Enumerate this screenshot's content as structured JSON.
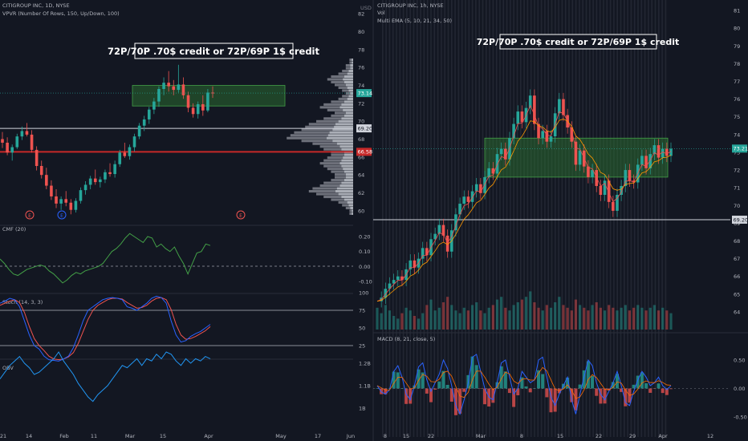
{
  "colors": {
    "background": "#131722",
    "up": "#26a69a",
    "down": "#ef5350",
    "green_zone": "#2e7d32",
    "red_line": "#c62828",
    "text": "#b2b5be",
    "grid": "#1e222d",
    "cmf": "#43a047",
    "stoch_k": "#2962ff",
    "stoch_d": "#ef5350",
    "obv": "#2196f3",
    "ema_fast": "#ef5350",
    "ema_slow": "#ff9800",
    "macd": "#2962ff",
    "macd_signal": "#ff6d00"
  },
  "left_panel": {
    "title": "CITIGROUP INC, 1D, NYSE",
    "vpvr_label": "VPVR (Number Of Rows, 150, Up/Down, 100)",
    "currency": "USD",
    "annotation": "72P/70P .70$ credit or 72P/69P 1$ credit",
    "price_ticks": [
      "82",
      "80",
      "78",
      "76",
      "74",
      "72",
      "70",
      "68",
      "66",
      "64",
      "62",
      "60"
    ],
    "badges": {
      "price": "73.14",
      "line1": "69.20",
      "line2": "66.58"
    },
    "earnings_icons": [
      "E",
      "E",
      "E"
    ],
    "cmf_label": "CMF (20)",
    "cmf_ticks": [
      "0.20",
      "0.10",
      "0.00",
      "-0.10"
    ],
    "stoch_label": "Stoch (14, 3, 3)",
    "stoch_ticks": [
      "100",
      "75",
      "50",
      "25"
    ],
    "obv_label": "OBV",
    "obv_ticks": [
      "1.2B",
      "1.1B",
      "1B"
    ],
    "x_ticks": [
      "21",
      "14",
      "Feb",
      "11",
      "Mar",
      "15",
      "Apr",
      "May",
      "17",
      "Jun"
    ]
  },
  "right_panel": {
    "title": "CITIGROUP INC, 1h, NYSE",
    "vol_label": "Vol",
    "ema_label": "Multi EMA (5, 10, 21, 34, 50)",
    "annotation": "72P/70P .70$ credit or 72P/69P 1$ credit",
    "price_ticks": [
      "81",
      "80",
      "79",
      "78",
      "77",
      "76",
      "75",
      "74",
      "73",
      "72",
      "71",
      "70",
      "69",
      "68",
      "67",
      "66",
      "65",
      "64"
    ],
    "badges": {
      "price": "73.21",
      "line1": "69.20"
    },
    "macd_label": "MACD (8, 21, close, 5)",
    "macd_ticks": [
      "0.50",
      "0.00",
      "-0.50"
    ],
    "x_ticks": [
      "8",
      "15",
      "22",
      "Mar",
      "8",
      "15",
      "22",
      "29",
      "Apr",
      "12"
    ]
  },
  "chart_data": [
    {
      "type": "candlestick",
      "title": "CITIGROUP INC, 1D, NYSE",
      "ylim": [
        59,
        83
      ],
      "candles": [
        [
          68.0,
          68.8,
          67.0,
          67.6
        ],
        [
          67.6,
          68.2,
          66.2,
          66.5
        ],
        [
          66.5,
          67.4,
          65.6,
          67.1
        ],
        [
          67.1,
          68.6,
          66.9,
          68.3
        ],
        [
          68.3,
          69.4,
          67.9,
          68.9
        ],
        [
          68.9,
          69.8,
          68.3,
          68.5
        ],
        [
          68.5,
          69.0,
          66.5,
          66.8
        ],
        [
          66.8,
          67.2,
          64.5,
          65.0
        ],
        [
          65.0,
          65.6,
          63.6,
          64.0
        ],
        [
          64.0,
          64.8,
          62.4,
          62.8
        ],
        [
          62.8,
          63.4,
          61.2,
          61.6
        ],
        [
          61.6,
          62.4,
          60.3,
          60.8
        ],
        [
          60.8,
          61.6,
          60.1,
          61.3
        ],
        [
          61.3,
          62.2,
          60.5,
          60.9
        ],
        [
          60.9,
          61.3,
          59.6,
          60.1
        ],
        [
          60.1,
          61.4,
          59.8,
          61.1
        ],
        [
          61.1,
          62.6,
          60.8,
          62.3
        ],
        [
          62.3,
          63.3,
          61.8,
          62.9
        ],
        [
          62.9,
          63.9,
          62.4,
          63.6
        ],
        [
          63.6,
          64.6,
          62.9,
          63.2
        ],
        [
          63.2,
          63.8,
          62.6,
          63.5
        ],
        [
          63.5,
          64.6,
          63.1,
          64.3
        ],
        [
          64.3,
          65.3,
          63.8,
          64.1
        ],
        [
          64.1,
          65.6,
          63.7,
          65.2
        ],
        [
          65.2,
          66.8,
          64.9,
          66.5
        ],
        [
          66.5,
          67.6,
          65.9,
          66.1
        ],
        [
          66.1,
          67.4,
          65.7,
          67.1
        ],
        [
          67.1,
          68.6,
          66.6,
          68.3
        ],
        [
          68.3,
          69.8,
          68.0,
          69.5
        ],
        [
          69.5,
          70.6,
          68.9,
          70.2
        ],
        [
          70.2,
          71.6,
          69.7,
          71.3
        ],
        [
          71.3,
          72.6,
          70.8,
          72.2
        ],
        [
          72.2,
          73.9,
          71.6,
          73.6
        ],
        [
          73.6,
          74.9,
          72.9,
          74.3
        ],
        [
          74.3,
          75.6,
          73.3,
          73.9
        ],
        [
          73.9,
          74.6,
          72.9,
          73.5
        ],
        [
          73.5,
          76.3,
          73.2,
          74.1
        ],
        [
          74.1,
          74.9,
          72.5,
          72.9
        ],
        [
          72.9,
          73.3,
          71.0,
          71.5
        ],
        [
          71.5,
          72.0,
          70.4,
          70.8
        ],
        [
          70.8,
          72.2,
          70.3,
          71.9
        ],
        [
          71.9,
          72.9,
          70.6,
          71.2
        ],
        [
          71.2,
          73.6,
          71.0,
          73.2
        ],
        [
          73.2,
          73.9,
          72.6,
          73.1
        ]
      ],
      "zone": [
        71.7,
        74.0
      ],
      "lines": [
        69.2,
        66.58
      ],
      "current": 73.14,
      "profile": [
        1,
        1,
        2,
        2,
        3,
        4,
        6,
        7,
        6,
        5,
        4,
        3,
        2,
        3,
        4,
        6,
        8,
        9,
        7,
        5,
        6,
        8,
        10,
        12,
        13,
        14,
        16,
        17,
        18,
        14,
        11,
        9,
        8,
        6,
        6,
        7,
        8,
        9,
        8,
        7,
        6,
        5,
        5,
        6,
        8,
        9,
        11,
        12,
        10,
        8,
        6,
        4,
        3,
        2,
        1,
        1
      ],
      "cmf": [
        0.05,
        0.02,
        -0.02,
        -0.05,
        -0.06,
        -0.04,
        -0.02,
        -0.01,
        0.0,
        0.01,
        0.0,
        -0.03,
        -0.05,
        -0.08,
        -0.11,
        -0.09,
        -0.06,
        -0.04,
        -0.05,
        -0.03,
        -0.02,
        -0.01,
        0.0,
        0.02,
        0.06,
        0.1,
        0.12,
        0.15,
        0.19,
        0.22,
        0.2,
        0.18,
        0.16,
        0.2,
        0.19,
        0.13,
        0.15,
        0.12,
        0.1,
        0.13,
        0.07,
        0.02,
        -0.05,
        0.02,
        0.09,
        0.1,
        0.15,
        0.14
      ],
      "stoch_k": [
        85,
        88,
        92,
        90,
        80,
        60,
        40,
        25,
        20,
        10,
        5,
        4,
        3,
        6,
        10,
        22,
        40,
        60,
        75,
        80,
        85,
        90,
        92,
        93,
        92,
        90,
        80,
        78,
        75,
        80,
        85,
        92,
        95,
        93,
        85,
        60,
        40,
        30,
        32,
        38,
        42,
        45,
        50,
        55
      ],
      "stoch_d": [
        82,
        85,
        88,
        90,
        86,
        72,
        52,
        35,
        25,
        18,
        10,
        6,
        5,
        6,
        9,
        15,
        28,
        45,
        62,
        75,
        82,
        86,
        90,
        92,
        92,
        91,
        86,
        82,
        78,
        79,
        82,
        88,
        92,
        93,
        90,
        76,
        55,
        40,
        34,
        35,
        38,
        42,
        46,
        52
      ],
      "obv": [
        1.13,
        1.16,
        1.19,
        1.21,
        1.23,
        1.2,
        1.18,
        1.15,
        1.16,
        1.18,
        1.2,
        1.22,
        1.25,
        1.21,
        1.18,
        1.15,
        1.11,
        1.08,
        1.05,
        1.03,
        1.06,
        1.08,
        1.1,
        1.13,
        1.16,
        1.19,
        1.18,
        1.2,
        1.22,
        1.19,
        1.22,
        1.21,
        1.24,
        1.22,
        1.25,
        1.24,
        1.21,
        1.19,
        1.22,
        1.2,
        1.22,
        1.21,
        1.23,
        1.22
      ]
    },
    {
      "type": "candlestick",
      "title": "CITIGROUP INC, 1h, NYSE",
      "ylim": [
        63.5,
        81.5
      ],
      "path": [
        64.6,
        64.8,
        65.3,
        65.6,
        65.8,
        66.0,
        65.8,
        66.4,
        66.9,
        66.5,
        67.0,
        67.6,
        67.2,
        68.1,
        68.4,
        68.9,
        68.3,
        67.4,
        68.6,
        69.5,
        70.1,
        70.5,
        70.2,
        70.8,
        71.2,
        70.7,
        71.6,
        72.1,
        71.8,
        72.9,
        73.2,
        72.6,
        73.8,
        74.6,
        75.3,
        74.7,
        75.5,
        76.2,
        74.6,
        73.8,
        74.2,
        73.6,
        73.9,
        75.2,
        76.0,
        75.1,
        74.4,
        73.6,
        72.3,
        73.1,
        72.2,
        71.6,
        72.0,
        71.1,
        70.6,
        71.4,
        70.2,
        69.7,
        70.6,
        71.1,
        72.0,
        71.4,
        71.3,
        72.3,
        72.8,
        72.1,
        72.9,
        73.4,
        72.7,
        73.2,
        72.8,
        73.2
      ],
      "volume": [
        8,
        6,
        9,
        7,
        5,
        4,
        6,
        8,
        7,
        5,
        4,
        6,
        9,
        11,
        7,
        8,
        10,
        12,
        9,
        7,
        6,
        8,
        7,
        9,
        10,
        7,
        6,
        8,
        9,
        11,
        12,
        8,
        7,
        9,
        10,
        11,
        12,
        14,
        10,
        8,
        7,
        9,
        8,
        10,
        12,
        9,
        8,
        7,
        11,
        9,
        8,
        7,
        9,
        10,
        8,
        7,
        9,
        8,
        7,
        8,
        9,
        7,
        8,
        9,
        8,
        7,
        8,
        9,
        7,
        8,
        7,
        6
      ],
      "zone": [
        71.6,
        73.8
      ],
      "lines": [
        69.2
      ],
      "current": 73.21,
      "macd": [
        0.05,
        -0.06,
        -0.1,
        -0.02,
        0.3,
        0.4,
        0.2,
        -0.1,
        -0.2,
        0.05,
        0.38,
        0.45,
        0.15,
        -0.05,
        0.1,
        0.25,
        0.5,
        0.35,
        0.05,
        -0.3,
        -0.45,
        -0.2,
        0.1,
        0.55,
        0.6,
        0.3,
        0.0,
        -0.15,
        -0.2,
        0.1,
        0.45,
        0.5,
        0.2,
        -0.1,
        0.0,
        0.3,
        0.2,
        0.1,
        0.15,
        0.5,
        0.55,
        0.2,
        -0.15,
        -0.3,
        -0.1,
        0.05,
        0.2,
        -0.2,
        -0.45,
        -0.1,
        0.2,
        0.5,
        0.4,
        0.1,
        -0.1,
        -0.2,
        -0.05,
        0.1,
        0.3,
        0.05,
        -0.25,
        -0.3,
        -0.05,
        0.15,
        0.3,
        0.2,
        0.05,
        0.1,
        0.2,
        0.05,
        -0.02,
        0.05
      ]
    }
  ]
}
